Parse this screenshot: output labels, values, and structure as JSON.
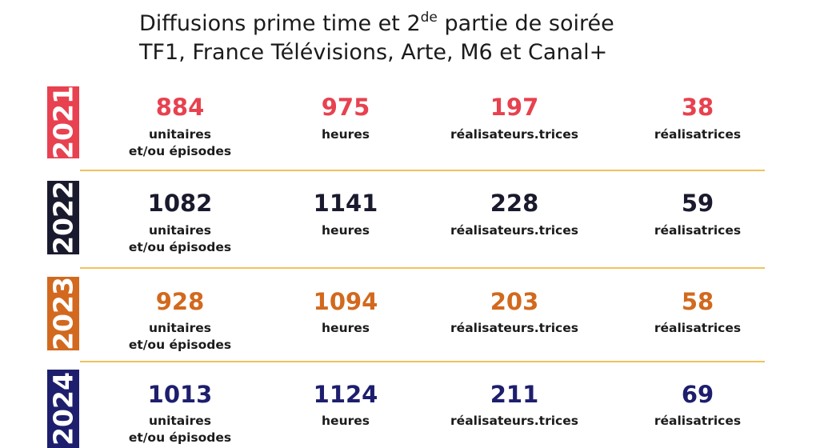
{
  "title": {
    "line1_pre": "Diffusions prime time et 2",
    "line1_sup": "de",
    "line1_post": " partie de soirée",
    "line2": "TF1, France Télévisions, Arte, M6 et Canal+"
  },
  "colors": {
    "y2021": "#e8414f",
    "y2022": "#1a1a2e",
    "y2023": "#d2691e",
    "y2024": "#1e1e6e",
    "separator": "#efc25c"
  },
  "rows": [
    {
      "year": "2021",
      "unitaires": "884",
      "heures": "975",
      "realisateurs": "197",
      "realisatrices": "38"
    },
    {
      "year": "2022",
      "unitaires": "1082",
      "heures": "1141",
      "realisateurs": "228",
      "realisatrices": "59"
    },
    {
      "year": "2023",
      "unitaires": "928",
      "heures": "1094",
      "realisateurs": "203",
      "realisatrices": "58"
    },
    {
      "year": "2024",
      "unitaires": "1013",
      "heures": "1124",
      "realisateurs": "211",
      "realisatrices": "69"
    }
  ],
  "labels": {
    "unitaires_line1": "unitaires",
    "unitaires_line2": "et/ou épisodes",
    "heures": "heures",
    "realisateurs": "réalisateurs.trices",
    "realisatrices": "réalisatrices"
  }
}
